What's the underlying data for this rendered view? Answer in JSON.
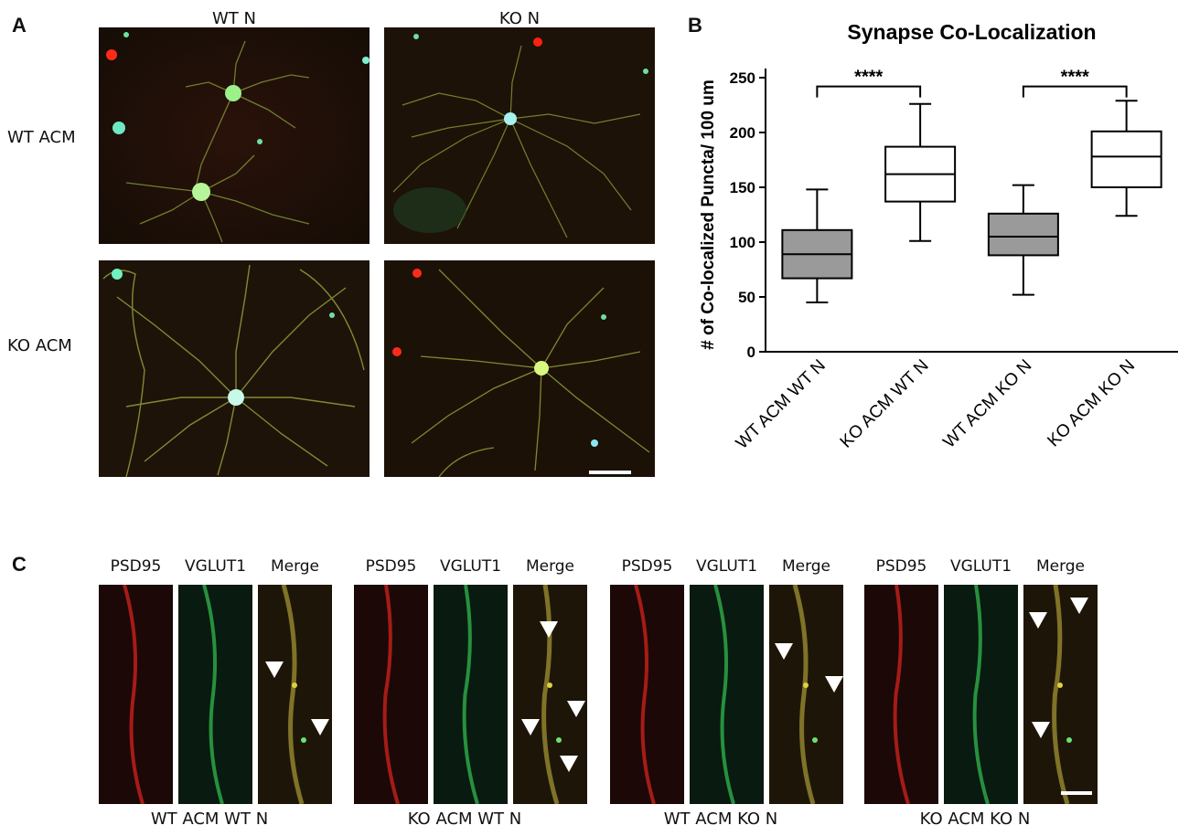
{
  "panel_a": {
    "letter": "A",
    "columns": [
      "WT N",
      "KO N"
    ],
    "rows": [
      "WT ACM",
      "KO ACM"
    ]
  },
  "panel_b": {
    "letter": "B"
  },
  "panel_c": {
    "letter": "C",
    "channel_labels": [
      "PSD95",
      "VGLUT1",
      "Merge"
    ],
    "groups": [
      "WT ACM WT N",
      "KO ACM WT N",
      "WT ACM KO N",
      "KO ACM KO N"
    ]
  },
  "chart_data": {
    "type": "box",
    "title": "Synapse Co-Localization",
    "ylabel": "# of Co-localized Puncta/ 100 um",
    "xlabel": "",
    "ylim": [
      0,
      250
    ],
    "yticks": [
      0,
      50,
      100,
      150,
      200,
      250
    ],
    "categories": [
      "WT ACM WT N",
      "KO ACM WT N",
      "WT ACM KO N",
      "KO ACM KO N"
    ],
    "boxes": [
      {
        "min": 45,
        "q1": 67,
        "median": 89,
        "q3": 111,
        "max": 148,
        "fill": "#9a9a9a"
      },
      {
        "min": 101,
        "q1": 137,
        "median": 162,
        "q3": 187,
        "max": 226,
        "fill": "#ffffff"
      },
      {
        "min": 52,
        "q1": 88,
        "median": 105,
        "q3": 126,
        "max": 152,
        "fill": "#9a9a9a"
      },
      {
        "min": 124,
        "q1": 150,
        "median": 178,
        "q3": 201,
        "max": 229,
        "fill": "#ffffff"
      }
    ],
    "significance": [
      {
        "from": 0,
        "to": 1,
        "label": "****",
        "y": 242
      },
      {
        "from": 2,
        "to": 3,
        "label": "****",
        "y": 242
      }
    ],
    "grid": false
  }
}
